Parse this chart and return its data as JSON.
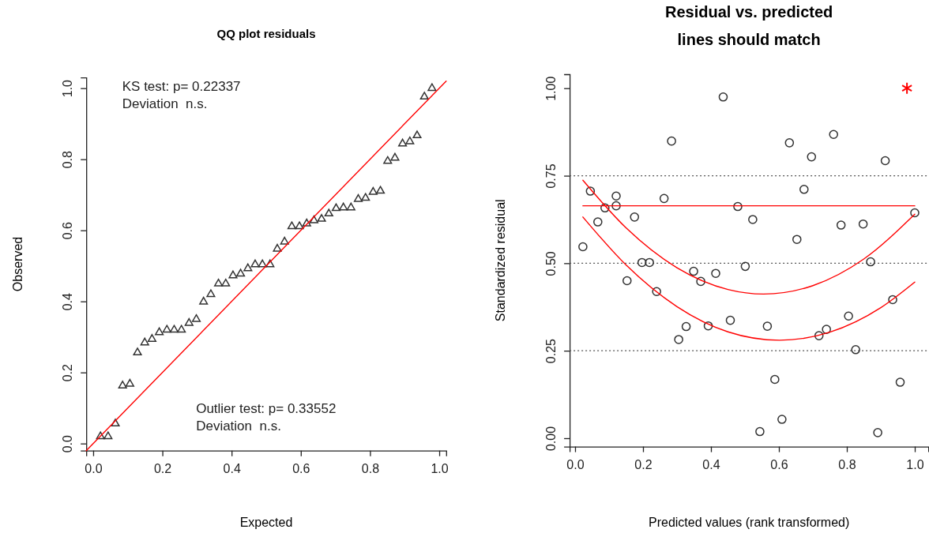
{
  "chart_data": [
    {
      "type": "scatter",
      "title": "QQ plot residuals",
      "xlabel": "Expected",
      "ylabel": "Observed",
      "annotations": [
        "KS test: p= 0.22337\nDeviation  n.s.",
        "Outlier test: p= 0.33552\nDeviation  n.s."
      ],
      "xlim": [
        -0.02,
        1.02
      ],
      "ylim": [
        -0.02,
        1.03
      ],
      "xticks": [
        {
          "value": 0,
          "label": "0.0"
        },
        {
          "value": 0.2,
          "label": "0.2"
        },
        {
          "value": 0.4,
          "label": "0.4"
        },
        {
          "value": 0.6,
          "label": "0.6"
        },
        {
          "value": 0.8,
          "label": "0.8"
        },
        {
          "value": 1,
          "label": "1.0"
        }
      ],
      "yticks": [
        {
          "value": 0,
          "label": "0.0"
        },
        {
          "value": 0.2,
          "label": "0.2"
        },
        {
          "value": 0.4,
          "label": "0.4"
        },
        {
          "value": 0.6,
          "label": "0.6"
        },
        {
          "value": 0.8,
          "label": "0.8"
        },
        {
          "value": 1,
          "label": "1.0"
        }
      ],
      "series": [
        {
          "type": "scatter",
          "color": "#333333",
          "marker": "triangle",
          "x": [
            0.021,
            0.043,
            0.064,
            0.085,
            0.106,
            0.128,
            0.149,
            0.17,
            0.191,
            0.213,
            0.234,
            0.255,
            0.277,
            0.298,
            0.319,
            0.34,
            0.362,
            0.383,
            0.404,
            0.426,
            0.447,
            0.468,
            0.489,
            0.511,
            0.532,
            0.553,
            0.574,
            0.596,
            0.617,
            0.638,
            0.66,
            0.681,
            0.702,
            0.723,
            0.745,
            0.766,
            0.787,
            0.809,
            0.83,
            0.851,
            0.872,
            0.894,
            0.915,
            0.936,
            0.957,
            0.979
          ],
          "values": [
            0.02,
            0.02,
            0.056,
            0.163,
            0.168,
            0.256,
            0.284,
            0.294,
            0.313,
            0.32,
            0.32,
            0.32,
            0.339,
            0.35,
            0.399,
            0.42,
            0.45,
            0.45,
            0.473,
            0.478,
            0.493,
            0.504,
            0.504,
            0.504,
            0.548,
            0.568,
            0.611,
            0.611,
            0.619,
            0.628,
            0.632,
            0.647,
            0.662,
            0.664,
            0.664,
            0.688,
            0.691,
            0.708,
            0.711,
            0.795,
            0.804,
            0.844,
            0.85,
            0.867,
            0.976,
            1.0
          ]
        },
        {
          "type": "line",
          "color": "#ff0000",
          "marker": "none",
          "line_style": "solid",
          "x": [
            -0.02,
            1.02
          ],
          "values": [
            -0.02,
            1.02
          ]
        }
      ]
    },
    {
      "type": "scatter",
      "title": "Residual vs. predicted\nlines should match",
      "xlabel": "Predicted values (rank transformed)",
      "ylabel": "Standardized residual",
      "xlim": [
        -0.016,
        1.04
      ],
      "ylim": [
        -0.024,
        1.04
      ],
      "xticks": [
        {
          "value": 0,
          "label": "0.0"
        },
        {
          "value": 0.2,
          "label": "0.2"
        },
        {
          "value": 0.4,
          "label": "0.4"
        },
        {
          "value": 0.6,
          "label": "0.6"
        },
        {
          "value": 0.8,
          "label": "0.8"
        },
        {
          "value": 1,
          "label": "1.0"
        }
      ],
      "yticks": [
        {
          "value": 0,
          "label": "0.00"
        },
        {
          "value": 0.25,
          "label": "0.25"
        },
        {
          "value": 0.5,
          "label": "0.50"
        },
        {
          "value": 0.75,
          "label": "0.75"
        },
        {
          "value": 1,
          "label": "1.00"
        }
      ],
      "ref_lines": [
        {
          "axis": "y",
          "value": 0.25,
          "color": "#555555",
          "line_style": "dotted"
        },
        {
          "axis": "y",
          "value": 0.5,
          "color": "#555555",
          "line_style": "dotted"
        },
        {
          "axis": "y",
          "value": 0.75,
          "color": "#555555",
          "line_style": "dotted"
        }
      ],
      "series": [
        {
          "type": "scatter",
          "color": "#333333",
          "marker": "circle",
          "x": [
            0.023,
            0.045,
            0.067,
            0.088,
            0.121,
            0.121,
            0.153,
            0.175,
            0.197,
            0.219,
            0.24,
            0.262,
            0.284,
            0.305,
            0.327,
            0.349,
            0.37,
            0.392,
            0.414,
            0.436,
            0.457,
            0.479,
            0.501,
            0.523,
            0.544,
            0.566,
            0.588,
            0.609,
            0.631,
            0.653,
            0.674,
            0.696,
            0.718,
            0.74,
            0.761,
            0.783,
            0.805,
            0.826,
            0.848,
            0.87,
            0.891,
            0.913,
            0.935,
            0.957,
            1.0
          ],
          "values": [
            0.547,
            0.706,
            0.618,
            0.658,
            0.692,
            0.664,
            0.45,
            0.632,
            0.502,
            0.502,
            0.419,
            0.685,
            0.849,
            0.282,
            0.319,
            0.477,
            0.448,
            0.321,
            0.471,
            0.975,
            0.337,
            0.662,
            0.491,
            0.625,
            0.019,
            0.32,
            0.168,
            0.054,
            0.844,
            0.568,
            0.711,
            0.804,
            0.293,
            0.311,
            0.868,
            0.609,
            0.349,
            0.253,
            0.612,
            0.504,
            0.016,
            0.793,
            0.396,
            0.16,
            0.644
          ]
        },
        {
          "type": "scatter",
          "color": "#ff0000",
          "marker": "cross",
          "x": [
            0.977
          ],
          "values": [
            1.0
          ]
        },
        {
          "type": "line",
          "color": "#ff0000",
          "marker": "none",
          "line_style": "solid",
          "x": [
            0.023,
            1.0
          ],
          "values": [
            0.664,
            0.664
          ]
        },
        {
          "type": "line",
          "color": "#ff0000",
          "marker": "none",
          "line_style": "solid",
          "x": [
            0.023,
            0.15,
            0.3,
            0.45,
            0.555,
            0.7,
            0.85,
            1.0
          ],
          "values": [
            0.737,
            0.601,
            0.487,
            0.425,
            0.412,
            0.436,
            0.512,
            0.64
          ]
        },
        {
          "type": "line",
          "color": "#ff0000",
          "marker": "none",
          "line_style": "solid",
          "x": [
            0.023,
            0.15,
            0.3,
            0.45,
            0.602,
            0.75,
            0.9,
            1.0
          ],
          "values": [
            0.632,
            0.495,
            0.376,
            0.304,
            0.28,
            0.303,
            0.373,
            0.446
          ]
        }
      ]
    }
  ]
}
